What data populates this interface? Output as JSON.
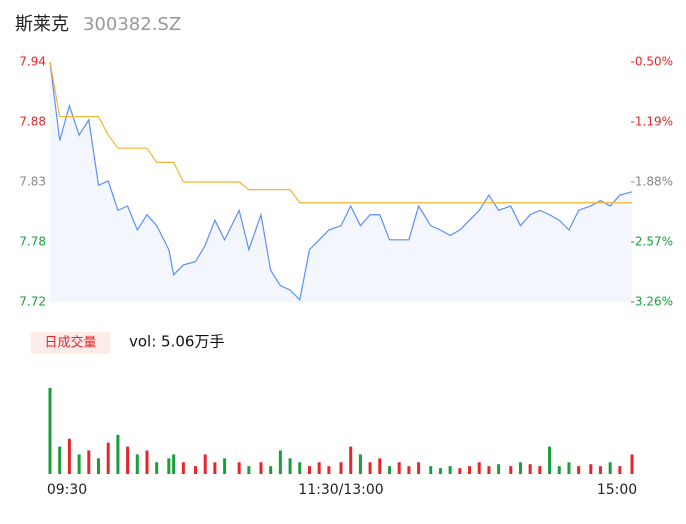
{
  "chart_data": {
    "type": "line",
    "title": "斯莱克",
    "subtitle": "300382.SZ",
    "x": [
      0,
      4,
      8,
      12,
      16,
      20,
      24,
      28,
      32,
      36,
      40,
      44,
      49,
      51,
      55,
      60,
      64,
      68,
      72,
      78,
      82,
      87,
      91,
      95,
      99,
      103,
      107,
      111,
      115,
      120,
      124,
      128,
      132,
      136,
      140,
      144,
      148,
      152,
      157,
      161,
      165,
      169,
      173,
      177,
      181,
      185,
      190,
      194,
      198,
      202,
      206,
      210,
      214,
      218,
      223,
      227,
      231,
      235,
      240
    ],
    "xlim": [
      0,
      240
    ],
    "xticks": [
      {
        "value": 0,
        "label": "09:30"
      },
      {
        "value": 120,
        "label": "11:30/13:00"
      },
      {
        "value": 240,
        "label": "15:00"
      }
    ],
    "ylim": [
      7.72,
      7.94
    ],
    "yticks": [
      7.94,
      {
        "value": 7.885,
        "label": "7.88"
      },
      7.83,
      {
        "value": 7.775,
        "label": "7.78"
      },
      7.72
    ],
    "y2lim": [
      -3.26,
      -0.5
    ],
    "y2ticks": [
      {
        "value": -0.5,
        "label": "-0.50%"
      },
      {
        "value": -1.19,
        "label": "-1.19%"
      },
      {
        "value": -1.88,
        "label": "-1.88%"
      },
      {
        "value": -2.57,
        "label": "-2.57%"
      },
      {
        "value": -3.26,
        "label": "-3.26%"
      }
    ],
    "tick_colors": [
      "#e5262a",
      "#e5262a",
      "#888888",
      "#1a9e3c",
      "#1a9e3c"
    ],
    "area_color": "#f3f7fd",
    "series": [
      {
        "color": "#5b8ff9",
        "values": [
          7.94,
          7.868,
          7.9,
          7.873,
          7.887,
          7.827,
          7.831,
          7.804,
          7.808,
          7.786,
          7.8,
          7.79,
          7.768,
          7.745,
          7.754,
          7.757,
          7.772,
          7.795,
          7.777,
          7.804,
          7.768,
          7.8,
          7.749,
          7.735,
          7.731,
          7.722,
          7.768,
          7.777,
          7.786,
          7.79,
          7.808,
          7.79,
          7.8,
          7.8,
          7.777,
          7.777,
          7.777,
          7.808,
          7.79,
          7.786,
          7.781,
          7.786,
          7.795,
          7.804,
          7.818,
          7.804,
          7.808,
          7.79,
          7.8,
          7.804,
          7.8,
          7.795,
          7.786,
          7.804,
          7.808,
          7.813,
          7.808,
          7.818,
          7.821
        ]
      },
      {
        "color": "#f5b335",
        "values": [
          7.94,
          7.89,
          7.89,
          7.89,
          7.89,
          7.89,
          7.873,
          7.861,
          7.861,
          7.861,
          7.861,
          7.848,
          7.848,
          7.848,
          7.83,
          7.83,
          7.83,
          7.83,
          7.83,
          7.83,
          7.823,
          7.823,
          7.823,
          7.823,
          7.823,
          7.811,
          7.811,
          7.811,
          7.811,
          7.811,
          7.811,
          7.811,
          7.811,
          7.811,
          7.811,
          7.811,
          7.811,
          7.811,
          7.811,
          7.811,
          7.811,
          7.811,
          7.811,
          7.811,
          7.811,
          7.811,
          7.811,
          7.811,
          7.811,
          7.811,
          7.811,
          7.811,
          7.811,
          7.811,
          7.811,
          7.811,
          7.811,
          7.811,
          7.811
        ]
      }
    ],
    "volume": {
      "label": "日成交量",
      "text": "vol: 5.06万手",
      "ylim": [
        0,
        2400
      ],
      "up_color": "#e5262a",
      "down_color": "#1a9e3c",
      "values": [
        2200,
        700,
        900,
        500,
        600,
        400,
        800,
        1000,
        700,
        500,
        600,
        300,
        400,
        500,
        300,
        200,
        500,
        300,
        400,
        300,
        200,
        300,
        200,
        600,
        400,
        300,
        200,
        300,
        200,
        300,
        700,
        500,
        300,
        400,
        200,
        300,
        200,
        300,
        200,
        150,
        200,
        150,
        200,
        300,
        200,
        250,
        200,
        300,
        250,
        200,
        700,
        200,
        300,
        200,
        250,
        200,
        300,
        200,
        500
      ]
    }
  }
}
